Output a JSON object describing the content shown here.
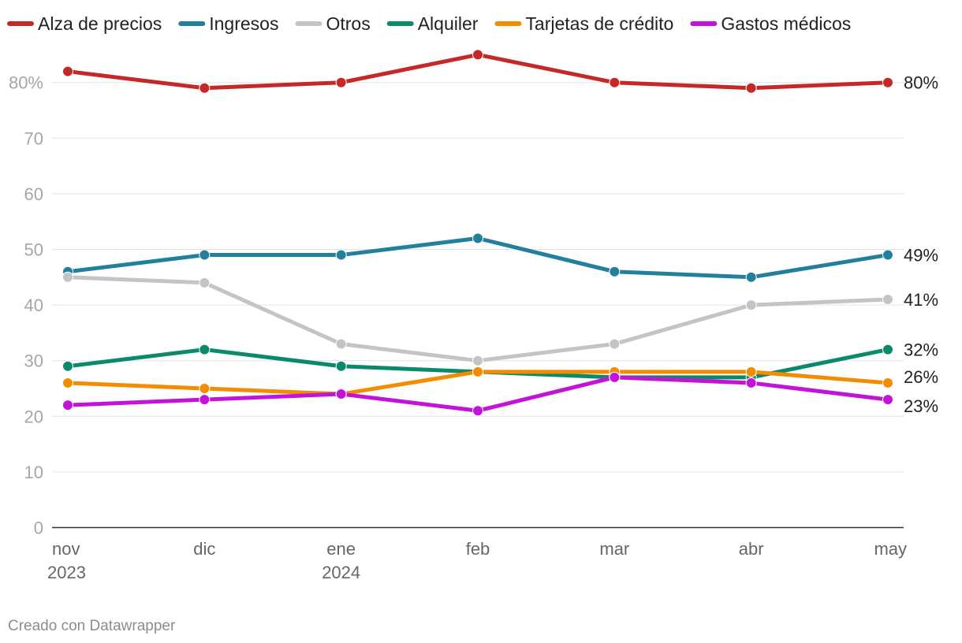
{
  "chart_data": {
    "type": "line",
    "title": "",
    "xlabel": "",
    "ylabel": "",
    "ylim": [
      0,
      85
    ],
    "y_ticks": [
      0,
      10,
      20,
      30,
      40,
      50,
      60,
      70,
      80
    ],
    "y_tick_labels": [
      "0",
      "10",
      "20",
      "30",
      "40",
      "50",
      "60",
      "70",
      "80%"
    ],
    "grid": true,
    "legend_position": "top",
    "categories": [
      "nov",
      "dic",
      "ene",
      "feb",
      "mar",
      "abr",
      "may"
    ],
    "category_year_labels": [
      "2023",
      "",
      "2024",
      "",
      "",
      "",
      ""
    ],
    "series": [
      {
        "name": "Alza de precios",
        "color": "#c62828",
        "values": [
          82,
          79,
          80,
          85,
          80,
          79,
          80
        ],
        "end_label": "80%"
      },
      {
        "name": "Ingresos",
        "color": "#23809c",
        "values": [
          46,
          49,
          49,
          52,
          46,
          45,
          49
        ],
        "end_label": "49%"
      },
      {
        "name": "Otros",
        "color": "#c4c4c4",
        "values": [
          45,
          44,
          33,
          30,
          33,
          40,
          41
        ],
        "end_label": "41%"
      },
      {
        "name": "Alquiler",
        "color": "#0a8a6a",
        "values": [
          29,
          32,
          29,
          28,
          27,
          27,
          32
        ],
        "end_label": "32%"
      },
      {
        "name": "Tarjetas de crédito",
        "color": "#f28c00",
        "values": [
          26,
          25,
          24,
          28,
          28,
          28,
          26
        ],
        "end_label": "26%"
      },
      {
        "name": "Gastos médicos",
        "color": "#c313d9",
        "values": [
          22,
          23,
          24,
          21,
          27,
          26,
          23
        ],
        "end_label": "23%"
      }
    ]
  },
  "credit": "Creado con Datawrapper"
}
